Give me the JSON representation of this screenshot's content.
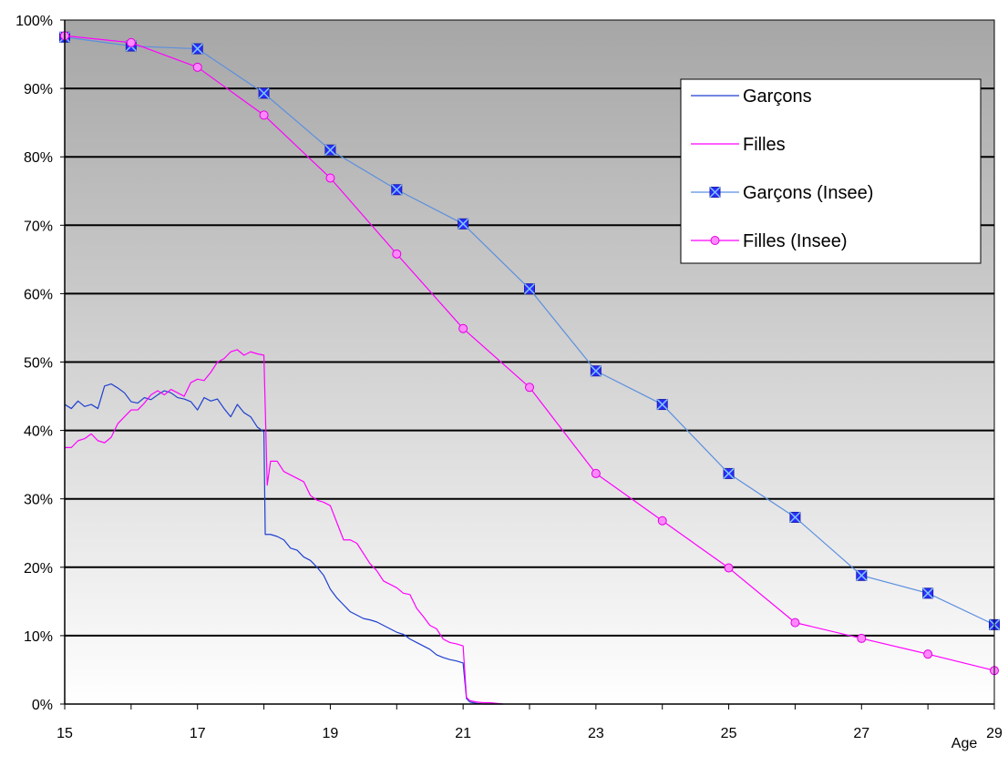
{
  "chart_data": {
    "type": "line",
    "title": "",
    "xlabel": "Age",
    "ylabel": "",
    "xlim": [
      15,
      29
    ],
    "ylim": [
      0,
      100
    ],
    "x_ticks": [
      "15",
      "17",
      "19",
      "21",
      "23",
      "25",
      "27",
      "29"
    ],
    "y_ticks": [
      "0%",
      "10%",
      "20%",
      "30%",
      "40%",
      "50%",
      "60%",
      "70%",
      "80%",
      "90%",
      "100%"
    ],
    "grid": true,
    "legend_position": "top-right",
    "colors": {
      "garcons": "#1f3fd0",
      "filles": "#ff00ff",
      "marker_fill_garcons": "#2b2bff",
      "marker_fill_filles": "#ff88ff",
      "grid": "#000000"
    },
    "series": [
      {
        "name": "Garçons",
        "marker": "none",
        "x": [
          15.0,
          15.1,
          15.2,
          15.3,
          15.4,
          15.5,
          15.6,
          15.7,
          15.8,
          15.9,
          16.0,
          16.1,
          16.2,
          16.3,
          16.4,
          16.5,
          16.6,
          16.7,
          16.8,
          16.9,
          17.0,
          17.1,
          17.2,
          17.3,
          17.4,
          17.5,
          17.6,
          17.7,
          17.8,
          17.9,
          18.0,
          18.02,
          18.1,
          18.2,
          18.3,
          18.4,
          18.5,
          18.6,
          18.7,
          18.8,
          18.9,
          19.0,
          19.1,
          19.2,
          19.3,
          19.4,
          19.5,
          19.6,
          19.7,
          19.8,
          19.9,
          20.0,
          20.1,
          20.2,
          20.3,
          20.4,
          20.5,
          20.6,
          20.7,
          20.8,
          20.9,
          21.0,
          21.05,
          21.1,
          21.2,
          21.3,
          21.4,
          21.5,
          21.6
        ],
        "y": [
          43.8,
          43.2,
          44.3,
          43.5,
          43.8,
          43.2,
          46.5,
          46.8,
          46.2,
          45.5,
          44.2,
          44.0,
          44.8,
          44.5,
          45.2,
          45.8,
          45.5,
          44.8,
          44.6,
          44.2,
          43.0,
          44.8,
          44.3,
          44.6,
          43.2,
          42.0,
          43.8,
          42.6,
          42.0,
          40.5,
          39.8,
          24.8,
          24.8,
          24.5,
          24.0,
          22.8,
          22.5,
          21.5,
          21.0,
          20.0,
          18.8,
          16.8,
          15.5,
          14.5,
          13.5,
          13.0,
          12.5,
          12.3,
          12.0,
          11.5,
          11.0,
          10.5,
          10.2,
          9.5,
          9.0,
          8.5,
          8.0,
          7.2,
          6.8,
          6.5,
          6.3,
          6.0,
          0.8,
          0.3,
          0.1,
          0.0,
          0.0,
          0.0,
          0.0
        ]
      },
      {
        "name": "Filles",
        "marker": "none",
        "x": [
          15.0,
          15.1,
          15.2,
          15.3,
          15.4,
          15.5,
          15.6,
          15.7,
          15.8,
          15.9,
          16.0,
          16.1,
          16.2,
          16.3,
          16.4,
          16.5,
          16.6,
          16.7,
          16.8,
          16.9,
          17.0,
          17.1,
          17.2,
          17.3,
          17.4,
          17.5,
          17.6,
          17.7,
          17.8,
          17.9,
          18.0,
          18.05,
          18.1,
          18.2,
          18.3,
          18.4,
          18.5,
          18.6,
          18.7,
          18.8,
          18.9,
          19.0,
          19.1,
          19.2,
          19.3,
          19.4,
          19.5,
          19.6,
          19.7,
          19.8,
          19.9,
          20.0,
          20.1,
          20.2,
          20.3,
          20.4,
          20.5,
          20.6,
          20.7,
          20.8,
          20.9,
          21.0,
          21.05,
          21.1,
          21.2,
          21.3,
          21.4,
          21.5,
          21.6
        ],
        "y": [
          37.5,
          37.5,
          38.5,
          38.8,
          39.5,
          38.5,
          38.2,
          39.0,
          41.0,
          42.0,
          43.0,
          43.0,
          44.0,
          45.2,
          45.8,
          45.2,
          46.0,
          45.5,
          45.0,
          47.0,
          47.5,
          47.3,
          48.5,
          50.0,
          50.5,
          51.5,
          51.8,
          51.0,
          51.5,
          51.2,
          51.0,
          32.0,
          35.5,
          35.5,
          34.0,
          33.5,
          33.0,
          32.5,
          30.5,
          29.8,
          29.5,
          29.0,
          26.5,
          24.0,
          24.0,
          23.5,
          22.0,
          20.5,
          19.5,
          18.0,
          17.5,
          17.0,
          16.2,
          16.0,
          14.0,
          12.8,
          11.5,
          11.0,
          9.5,
          9.0,
          8.8,
          8.5,
          1.0,
          0.5,
          0.3,
          0.2,
          0.2,
          0.1,
          0.0
        ]
      },
      {
        "name": "Garçons (Insee)",
        "marker": "square-x",
        "x": [
          15,
          16,
          17,
          18,
          19,
          20,
          21,
          22,
          23,
          24,
          25,
          26,
          27,
          28,
          29
        ],
        "y": [
          97.5,
          96.2,
          95.8,
          89.3,
          81.0,
          75.2,
          70.2,
          60.7,
          48.7,
          43.8,
          33.7,
          27.3,
          18.8,
          16.2,
          11.6
        ]
      },
      {
        "name": "Filles (Insee)",
        "marker": "circle",
        "x": [
          15,
          16,
          17,
          18,
          19,
          20,
          21,
          22,
          23,
          24,
          25,
          26,
          27,
          28,
          29
        ],
        "y": [
          97.7,
          96.7,
          93.1,
          86.1,
          76.9,
          65.8,
          54.9,
          46.3,
          33.7,
          26.8,
          19.9,
          11.9,
          9.6,
          7.3,
          4.9
        ]
      }
    ]
  }
}
